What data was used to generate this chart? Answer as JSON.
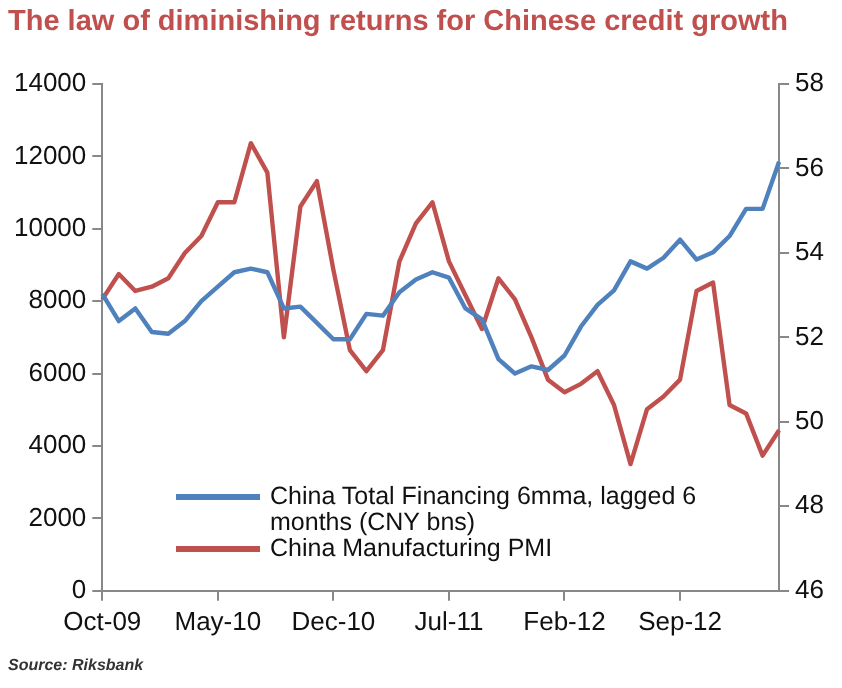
{
  "chart_data": {
    "type": "line",
    "title": "The law of diminishing returns for Chinese credit growth",
    "annotations": [
      "Source: Riksbank"
    ],
    "categories": [
      "Oct-09",
      null,
      null,
      null,
      null,
      null,
      null,
      "May-10",
      null,
      null,
      null,
      null,
      null,
      null,
      "Dec-10",
      null,
      null,
      null,
      null,
      null,
      null,
      "Jul-11",
      null,
      null,
      null,
      null,
      null,
      null,
      "Feb-12",
      null,
      null,
      null,
      null,
      null,
      null,
      "Sep-12",
      null,
      null,
      null,
      null,
      null,
      null
    ],
    "series": [
      {
        "name": "China Total Financing 6mma, lagged 6 months (CNY bns)",
        "color": "#4f81bd",
        "values": [
          8200,
          7450,
          7800,
          7150,
          7100,
          7450,
          8000,
          8400,
          8800,
          8900,
          8800,
          7800,
          7850,
          7400,
          6950,
          6950,
          7650,
          7600,
          8250,
          8600,
          8800,
          8650,
          7800,
          7500,
          6400,
          6000,
          6200,
          6100,
          6500,
          7300,
          7900,
          8300,
          9100,
          8900,
          9200,
          9700,
          9150,
          9350,
          9800,
          10550,
          10550,
          11850
        ]
      },
      {
        "name": "China Manufacturing PMI",
        "color": "#c0504d",
        "axis": "y2",
        "values": [
          52.9,
          53.5,
          53.1,
          53.2,
          53.4,
          54,
          54.4,
          55.2,
          55.2,
          56.6,
          55.9,
          52,
          55.1,
          55.7,
          53.6,
          51.7,
          51.2,
          51.7,
          53.8,
          54.7,
          55.2,
          53.8,
          53,
          52.2,
          53.4,
          52.9,
          52,
          51,
          50.7,
          50.9,
          51.2,
          50.4,
          49,
          50.3,
          50.6,
          51,
          53.1,
          53.3,
          50.4,
          50.2,
          49.2,
          49.8
        ]
      }
    ],
    "ylim": [
      0,
      14000
    ],
    "yticks": [
      0,
      2000,
      4000,
      6000,
      8000,
      10000,
      12000,
      14000
    ],
    "y2lim": [
      46,
      58
    ],
    "y2ticks": [
      46,
      48,
      50,
      52,
      54,
      56,
      58
    ],
    "grid": false,
    "legend": "bottom",
    "marker": "none",
    "line_style": "solid"
  }
}
